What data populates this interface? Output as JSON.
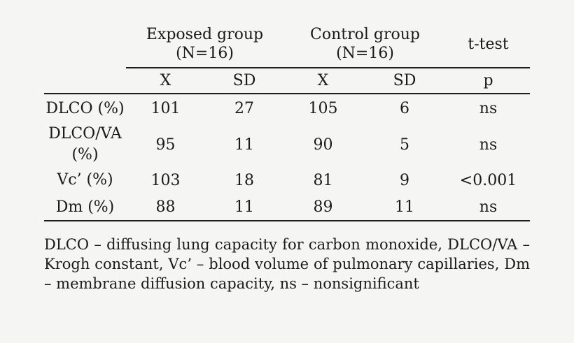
{
  "colors": {
    "background": "#f5f5f4",
    "text": "#1a1a1a",
    "rule": "#1e1e1e"
  },
  "table": {
    "groups": [
      {
        "name": "Exposed group",
        "n": "(N=16)"
      },
      {
        "name": "Control group",
        "n": "(N=16)"
      },
      {
        "name": "t-test"
      }
    ],
    "sub_headers": [
      "X",
      "SD",
      "X",
      "SD",
      "p"
    ],
    "rows": [
      {
        "label": "DLCO (%)",
        "values": [
          "101",
          "27",
          "105",
          "6",
          "ns"
        ]
      },
      {
        "label": "DLCO/VA (%)",
        "values": [
          "95",
          "11",
          "90",
          "5",
          "ns"
        ]
      },
      {
        "label": "Vc’ (%)",
        "values": [
          "103",
          "18",
          "81",
          "9",
          "<0.001"
        ]
      },
      {
        "label": "Dm (%)",
        "values": [
          "88",
          "11",
          "89",
          "11",
          "ns"
        ]
      }
    ],
    "footnote": "DLCO – diffusing lung capacity for carbon monoxide, DLCO/VA – Krogh constant, Vc’ – blood volume of pulmonary capillaries, Dm – membrane diffusion capacity, ns – nonsignificant"
  }
}
